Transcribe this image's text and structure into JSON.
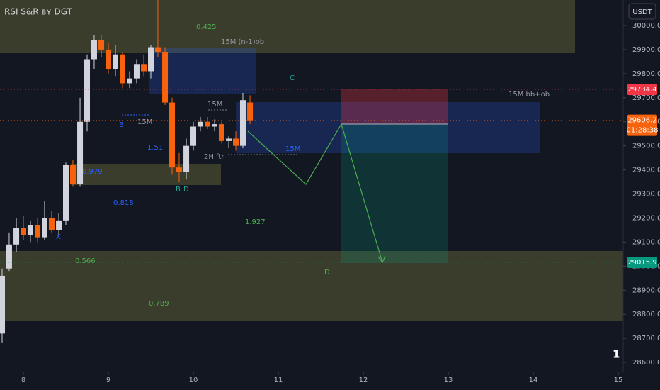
{
  "chart_data": {
    "type": "candlestick",
    "title": "RSI S&R ʙʏ DGT",
    "currency": "USDT",
    "x": [
      7.75,
      7.833,
      7.917,
      8,
      8.083,
      8.167,
      8.25,
      8.333,
      8.417,
      8.5,
      8.583,
      8.667,
      8.75,
      8.833,
      8.917,
      9,
      9.083,
      9.167,
      9.25,
      9.333,
      9.417,
      9.5,
      9.583,
      9.667,
      9.75,
      9.833,
      9.917,
      10,
      10.083,
      10.167,
      10.25,
      10.333,
      10.417,
      10.5,
      10.583,
      10.667
    ],
    "series": [
      {
        "open": [
          28720,
          28990,
          29090,
          29160,
          29130,
          29170,
          29120,
          29200,
          29150,
          29190,
          29420,
          29340,
          29600,
          29860,
          29940,
          29900,
          29820,
          29880,
          29760,
          29780,
          29840,
          29810,
          29910,
          29890,
          29680,
          29410,
          29390,
          29500,
          29580,
          29600,
          29580,
          29590,
          29520,
          29530,
          29500,
          29680
        ],
        "high": [
          28990,
          29140,
          29200,
          29210,
          29190,
          29200,
          29270,
          29230,
          29220,
          29430,
          29440,
          29700,
          29880,
          29960,
          29960,
          29930,
          29920,
          29890,
          29810,
          29860,
          29880,
          29920,
          30110,
          29910,
          29700,
          29470,
          29530,
          29600,
          29620,
          29620,
          29610,
          29600,
          29540,
          29560,
          29720,
          29710
        ],
        "low": [
          28680,
          28980,
          29060,
          29110,
          29100,
          29100,
          29110,
          29140,
          29130,
          29170,
          29330,
          29330,
          29560,
          29820,
          29870,
          29800,
          29790,
          29740,
          29740,
          29760,
          29790,
          29780,
          29870,
          29670,
          29380,
          29350,
          29360,
          29480,
          29560,
          29570,
          29560,
          29510,
          29490,
          29480,
          29490,
          29590
        ],
        "close": [
          28960,
          29090,
          29160,
          29130,
          29170,
          29120,
          29200,
          29150,
          29190,
          29420,
          29340,
          29600,
          29860,
          29940,
          29900,
          29820,
          29880,
          29760,
          29780,
          29840,
          29810,
          29910,
          29890,
          29680,
          29410,
          29390,
          29500,
          29580,
          29600,
          29580,
          29590,
          29520,
          29530,
          29500,
          29690,
          29606.2
        ]
      }
    ],
    "up_color": "#d1d4dc",
    "down_color": "#f7630c",
    "xlim": [
      7.725,
      15.058
    ],
    "xticks": [
      8,
      9,
      10,
      11,
      12,
      13,
      14,
      15
    ],
    "ylim": [
      28559,
      30106
    ],
    "yticks": [
      {
        "value": 28600,
        "label": "28600.0"
      },
      {
        "value": 28700,
        "label": "28700.0"
      },
      {
        "value": 28800,
        "label": "28800.0"
      },
      {
        "value": 28900,
        "label": "28900.0"
      },
      {
        "value": 29000,
        "label": "29000.0"
      },
      {
        "value": 29100,
        "label": "29100.0"
      },
      {
        "value": 29200,
        "label": "29200.0"
      },
      {
        "value": 29300,
        "label": "29300.0"
      },
      {
        "value": 29400,
        "label": "29400.0"
      },
      {
        "value": 29500,
        "label": "29500.0"
      },
      {
        "value": 29600,
        "label": "29600.0"
      },
      {
        "value": 29700,
        "label": "29700.0"
      },
      {
        "value": 29800,
        "label": "29800.0"
      },
      {
        "value": 29900,
        "label": "29900.0"
      },
      {
        "value": 30000,
        "label": "30000.0"
      }
    ],
    "price_markers": [
      {
        "value": 29734.4,
        "color": "#f23645"
      },
      {
        "value": 29606.2,
        "color": "#f7630c",
        "countdown": "01:28:38"
      },
      {
        "value": 29015.9,
        "color": "#089981"
      }
    ],
    "annotations": [
      "0.425",
      "15M (n-1)ob",
      "C",
      "15M bb+ob",
      "B",
      "15M",
      "1.51",
      "15M",
      "2H ftr",
      "15M",
      "0.979",
      "B",
      "D",
      "0.818",
      "1.927",
      "X",
      "0.566",
      "D",
      "0.789"
    ],
    "pane_badge": "1"
  }
}
